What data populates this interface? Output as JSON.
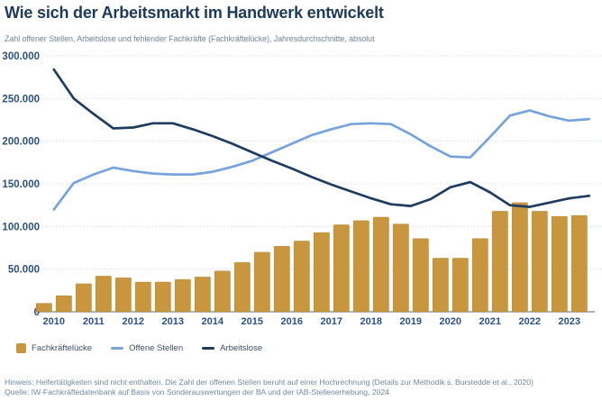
{
  "header": {
    "title": "Wie sich der Arbeitsmarkt im Handwerk entwickelt",
    "subtitle": "Zahl offener Stellen, Arbeitslose und fehlender Fachkräfte (Fachkräftelücke), Jahresdurchschnitte, absolut"
  },
  "legend": [
    {
      "label": "Fachkräftelücke",
      "type": "bar",
      "color": "#C8963E"
    },
    {
      "label": "Offene Stellen",
      "type": "line",
      "color": "#76A3DC"
    },
    {
      "label": "Arbeitslose",
      "type": "line",
      "color": "#1E3C5F"
    }
  ],
  "footer": {
    "note": "Hinweis: Helfertätigkeiten sind nicht enthalten. Die Zahl der offenen Stellen beruht auf einer Hochrechnung (Details zur Methodik s. Burstedde et al., 2020)",
    "source": "Quelle: IW-Fachkräftedatenbank auf Basis von Sonderauswertungen der BA und der IAB-Stellenerhebung, 2024"
  },
  "chart_data": {
    "type": "bar+line",
    "x_labels": [
      "2010",
      "2011",
      "2012",
      "2013",
      "2014",
      "2015",
      "2016",
      "2017",
      "2018",
      "2019",
      "2020",
      "2021",
      "2022",
      "2023"
    ],
    "points_per_year": 2,
    "y_ticks": [
      {
        "label": "300.000",
        "value": 300000
      },
      {
        "label": "250.000",
        "value": 250000
      },
      {
        "label": "200.000",
        "value": 200000
      },
      {
        "label": "150.000",
        "value": 150000
      },
      {
        "label": "100.000",
        "value": 100000
      },
      {
        "label": "50.000",
        "value": 50000
      },
      {
        "label": "0",
        "value": 0
      }
    ],
    "ylim": [
      0,
      300000
    ],
    "grid": "dotted-horizontal",
    "legend_position": "bottom-left",
    "bar_series": {
      "name": "Fachkräftelücke",
      "color": "#C8963E",
      "values": [
        10000,
        19000,
        33000,
        42000,
        40000,
        35000,
        35000,
        38000,
        41000,
        48000,
        58000,
        70000,
        77000,
        83000,
        93000,
        102000,
        107000,
        111000,
        103000,
        86000,
        63000,
        63000,
        86000,
        118000,
        128000,
        118000,
        112000,
        113000
      ]
    },
    "line_series": [
      {
        "name": "Offene Stellen",
        "color": "#76A3DC",
        "values": [
          120000,
          151000,
          161000,
          169000,
          165000,
          162000,
          161000,
          161000,
          164000,
          170000,
          177000,
          187000,
          197000,
          207000,
          214000,
          220000,
          221000,
          220000,
          208000,
          194000,
          182000,
          181000,
          205000,
          230000,
          236000,
          229000,
          224000,
          226000
        ]
      },
      {
        "name": "Arbeitslose",
        "color": "#1E3C5F",
        "values": [
          284000,
          250000,
          232000,
          215000,
          216000,
          221000,
          221000,
          214000,
          206000,
          197000,
          187000,
          177000,
          168000,
          158000,
          149000,
          141000,
          133000,
          126000,
          124000,
          132000,
          146000,
          152000,
          140000,
          125000,
          123000,
          128000,
          133000,
          136000
        ]
      }
    ]
  },
  "colors": {
    "title": "#1E3A5A",
    "subtitle": "#6E869D",
    "axis_labels": "#2B5184",
    "gridline": "#C9D7E6",
    "baseline": "#9C9C9C",
    "bar": "#C8963E",
    "line_open_positions": "#76A3DC",
    "line_unemployed": "#1E3C5F",
    "footer": "#7188A0"
  }
}
